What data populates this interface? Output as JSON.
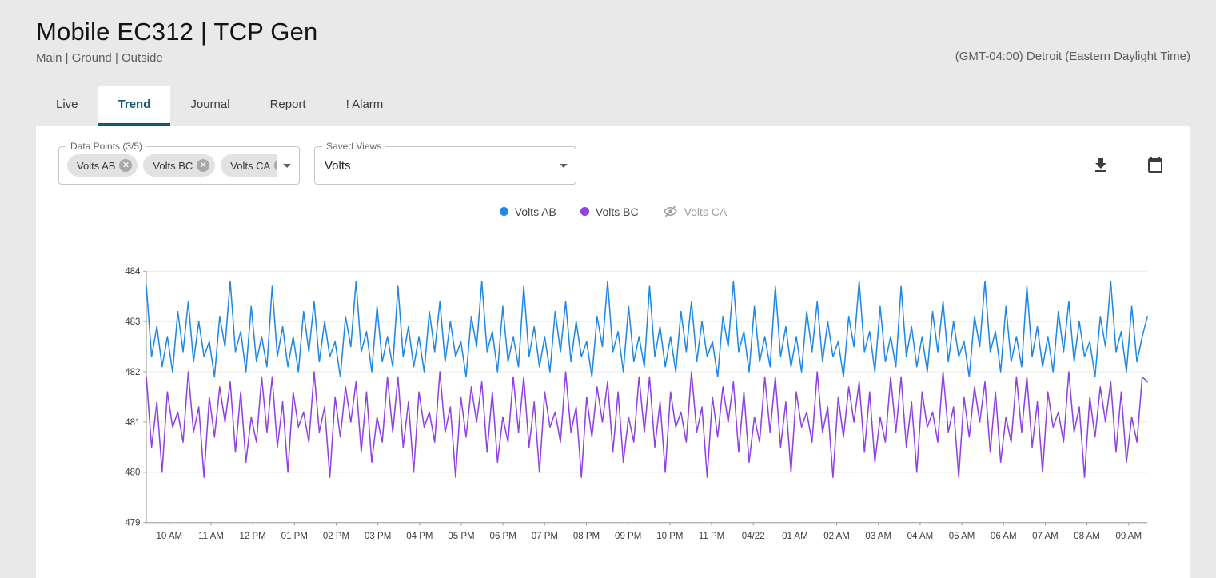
{
  "header": {
    "title": "Mobile EC312 | TCP Gen",
    "breadcrumb": "Main | Ground | Outside",
    "timezone": "(GMT-04:00) Detroit (Eastern Daylight Time)"
  },
  "tabs": [
    {
      "label": "Live",
      "active": false
    },
    {
      "label": "Trend",
      "active": true
    },
    {
      "label": "Journal",
      "active": false
    },
    {
      "label": "Report",
      "active": false
    },
    {
      "label": "! Alarm",
      "active": false
    }
  ],
  "controls": {
    "data_points": {
      "label": "Data Points (3/5)",
      "chips": [
        "Volts AB",
        "Volts BC",
        "Volts CA"
      ]
    },
    "saved_views": {
      "label": "Saved Views",
      "value": "Volts"
    }
  },
  "legend": [
    {
      "label": "Volts AB",
      "color": "#1e88e5",
      "visible": true
    },
    {
      "label": "Volts BC",
      "color": "#8e42e3",
      "visible": true
    },
    {
      "label": "Volts CA",
      "color": "#9e9e9e",
      "visible": false
    }
  ],
  "theme": {
    "accent": "#0f5a73",
    "page_background": "#e9e9e9",
    "card_background": "#ffffff"
  },
  "chart_data": {
    "type": "line",
    "title": "",
    "xlabel": "",
    "ylabel": "",
    "ylim": [
      479,
      484
    ],
    "y_ticks": [
      484,
      483,
      482,
      481,
      480,
      479
    ],
    "x_ticks": [
      "10 AM",
      "11 AM",
      "12 PM",
      "01 PM",
      "02 PM",
      "03 PM",
      "04 PM",
      "05 PM",
      "06 PM",
      "07 PM",
      "08 PM",
      "09 PM",
      "10 PM",
      "11 PM",
      "04/22",
      "01 AM",
      "02 AM",
      "03 AM",
      "04 AM",
      "05 AM",
      "06 AM",
      "07 AM",
      "08 AM",
      "09 AM"
    ],
    "grid": true,
    "legend_position": "top",
    "series": [
      {
        "name": "Volts AB",
        "color": "#1e88e5",
        "hidden": false,
        "values": [
          483.7,
          482.3,
          482.9,
          482.1,
          482.7,
          482.0,
          483.2,
          482.4,
          483.4,
          482.2,
          483.0,
          482.3,
          482.6,
          481.9,
          483.1,
          482.5,
          483.8,
          482.4,
          482.8,
          482.0,
          483.3,
          482.2,
          482.7,
          482.1,
          483.7,
          482.3,
          482.9,
          482.1,
          482.7,
          482.0,
          483.2,
          482.4,
          483.4,
          482.2,
          483.0,
          482.3,
          482.6,
          481.9,
          483.1,
          482.5,
          483.8,
          482.4,
          482.8,
          482.0,
          483.3,
          482.2,
          482.7,
          482.1,
          483.7,
          482.3,
          482.9,
          482.1,
          482.7,
          482.0,
          483.2,
          482.4,
          483.4,
          482.2,
          483.0,
          482.3,
          482.6,
          481.9,
          483.1,
          482.5,
          483.8,
          482.4,
          482.8,
          482.0,
          483.3,
          482.2,
          482.7,
          482.1,
          483.7,
          482.3,
          482.9,
          482.1,
          482.7,
          482.0,
          483.2,
          482.4,
          483.4,
          482.2,
          483.0,
          482.3,
          482.6,
          481.9,
          483.1,
          482.5,
          483.8,
          482.4,
          482.8,
          482.0,
          483.3,
          482.2,
          482.7,
          482.1,
          483.7,
          482.3,
          482.9,
          482.1,
          482.7,
          482.0,
          483.2,
          482.4,
          483.4,
          482.2,
          483.0,
          482.3,
          482.6,
          481.9,
          483.1,
          482.5,
          483.8,
          482.4,
          482.8,
          482.0,
          483.3,
          482.2,
          482.7,
          482.1,
          483.7,
          482.3,
          482.9,
          482.1,
          482.7,
          482.0,
          483.2,
          482.4,
          483.4,
          482.2,
          483.0,
          482.3,
          482.6,
          481.9,
          483.1,
          482.5,
          483.8,
          482.4,
          482.8,
          482.0,
          483.3,
          482.2,
          482.7,
          482.1,
          483.7,
          482.3,
          482.9,
          482.1,
          482.7,
          482.0,
          483.2,
          482.4,
          483.4,
          482.2,
          483.0,
          482.3,
          482.6,
          481.9,
          483.1,
          482.5,
          483.8,
          482.4,
          482.8,
          482.0,
          483.3,
          482.2,
          482.7,
          482.1,
          483.7,
          482.3,
          482.9,
          482.1,
          482.7,
          482.0,
          483.2,
          482.4,
          483.4,
          482.2,
          483.0,
          482.3,
          482.6,
          481.9,
          483.1,
          482.5,
          483.8,
          482.4,
          482.8,
          482.0,
          483.3,
          482.2,
          482.7,
          483.1
        ]
      },
      {
        "name": "Volts BC",
        "color": "#8e42e3",
        "hidden": false,
        "values": [
          481.9,
          480.5,
          481.4,
          480.0,
          481.6,
          480.9,
          481.2,
          480.6,
          482.0,
          480.8,
          481.3,
          479.9,
          481.5,
          480.7,
          481.7,
          481.0,
          481.8,
          480.4,
          481.6,
          480.2,
          481.1,
          480.6,
          481.9,
          480.8,
          481.9,
          480.5,
          481.4,
          480.0,
          481.6,
          480.9,
          481.2,
          480.6,
          482.0,
          480.8,
          481.3,
          479.9,
          481.5,
          480.7,
          481.7,
          481.0,
          481.8,
          480.4,
          481.6,
          480.2,
          481.1,
          480.6,
          481.9,
          480.8,
          481.9,
          480.5,
          481.4,
          480.0,
          481.6,
          480.9,
          481.2,
          480.6,
          482.0,
          480.8,
          481.3,
          479.9,
          481.5,
          480.7,
          481.7,
          481.0,
          481.8,
          480.4,
          481.6,
          480.2,
          481.1,
          480.6,
          481.9,
          480.8,
          481.9,
          480.5,
          481.4,
          480.0,
          481.6,
          480.9,
          481.2,
          480.6,
          482.0,
          480.8,
          481.3,
          479.9,
          481.5,
          480.7,
          481.7,
          481.0,
          481.8,
          480.4,
          481.6,
          480.2,
          481.1,
          480.6,
          481.9,
          480.8,
          481.9,
          480.5,
          481.4,
          480.0,
          481.6,
          480.9,
          481.2,
          480.6,
          482.0,
          480.8,
          481.3,
          479.9,
          481.5,
          480.7,
          481.7,
          481.0,
          481.8,
          480.4,
          481.6,
          480.2,
          481.1,
          480.6,
          481.9,
          480.8,
          481.9,
          480.5,
          481.4,
          480.0,
          481.6,
          480.9,
          481.2,
          480.6,
          482.0,
          480.8,
          481.3,
          479.9,
          481.5,
          480.7,
          481.7,
          481.0,
          481.8,
          480.4,
          481.6,
          480.2,
          481.1,
          480.6,
          481.9,
          480.8,
          481.9,
          480.5,
          481.4,
          480.0,
          481.6,
          480.9,
          481.2,
          480.6,
          482.0,
          480.8,
          481.3,
          479.9,
          481.5,
          480.7,
          481.7,
          481.0,
          481.8,
          480.4,
          481.6,
          480.2,
          481.1,
          480.6,
          481.9,
          480.8,
          481.9,
          480.5,
          481.4,
          480.0,
          481.6,
          480.9,
          481.2,
          480.6,
          482.0,
          480.8,
          481.3,
          479.9,
          481.5,
          480.7,
          481.7,
          481.0,
          481.8,
          480.4,
          481.6,
          480.2,
          481.1,
          480.6,
          481.9,
          481.8
        ]
      },
      {
        "name": "Volts CA",
        "color": "#9e9e9e",
        "hidden": true,
        "values": []
      }
    ]
  }
}
